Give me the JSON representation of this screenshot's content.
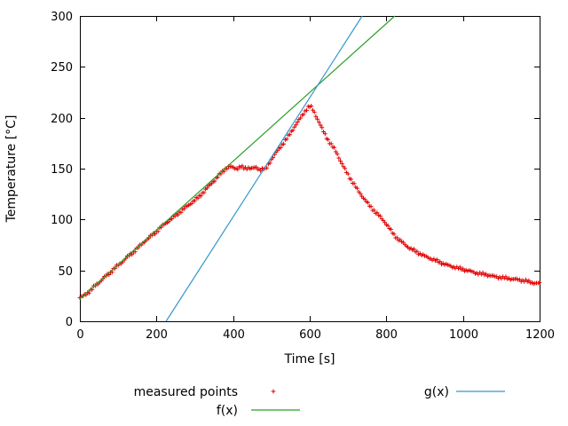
{
  "chart_data": {
    "type": "scatter",
    "title": "",
    "xlabel": "Time [s]",
    "ylabel": "Temperature [°C]",
    "xlim": [
      0,
      1200
    ],
    "ylim": [
      0,
      300
    ],
    "xticks": [
      0,
      200,
      400,
      600,
      800,
      1000,
      1200
    ],
    "yticks": [
      0,
      50,
      100,
      150,
      200,
      250,
      300
    ],
    "grid": false,
    "legend_position": "below-plot",
    "marker_interval_s": 4,
    "series": [
      {
        "name": "measured points",
        "style": "points",
        "marker": "plus",
        "color": "#e00000",
        "points": [
          [
            0,
            23
          ],
          [
            10,
            25
          ],
          [
            20,
            28
          ],
          [
            30,
            31
          ],
          [
            40,
            35
          ],
          [
            50,
            38
          ],
          [
            60,
            42
          ],
          [
            70,
            45
          ],
          [
            80,
            48
          ],
          [
            90,
            52
          ],
          [
            100,
            55
          ],
          [
            110,
            58
          ],
          [
            120,
            62
          ],
          [
            130,
            65
          ],
          [
            140,
            68
          ],
          [
            150,
            72
          ],
          [
            160,
            75
          ],
          [
            170,
            79
          ],
          [
            180,
            82
          ],
          [
            190,
            85
          ],
          [
            200,
            88
          ],
          [
            210,
            92
          ],
          [
            220,
            95
          ],
          [
            230,
            98
          ],
          [
            240,
            101
          ],
          [
            250,
            104
          ],
          [
            260,
            107
          ],
          [
            270,
            110
          ],
          [
            280,
            113
          ],
          [
            290,
            116
          ],
          [
            300,
            119
          ],
          [
            310,
            122
          ],
          [
            320,
            126
          ],
          [
            330,
            130
          ],
          [
            340,
            134
          ],
          [
            350,
            138
          ],
          [
            360,
            142
          ],
          [
            370,
            146
          ],
          [
            380,
            150
          ],
          [
            390,
            152
          ],
          [
            400,
            151
          ],
          [
            410,
            150
          ],
          [
            420,
            152
          ],
          [
            430,
            150
          ],
          [
            440,
            151
          ],
          [
            450,
            150
          ],
          [
            460,
            151
          ],
          [
            470,
            149
          ],
          [
            480,
            150
          ],
          [
            485,
            149
          ],
          [
            495,
            156
          ],
          [
            505,
            162
          ],
          [
            515,
            167
          ],
          [
            525,
            172
          ],
          [
            535,
            177
          ],
          [
            545,
            182
          ],
          [
            555,
            188
          ],
          [
            565,
            194
          ],
          [
            575,
            199
          ],
          [
            585,
            205
          ],
          [
            595,
            210
          ],
          [
            600,
            211
          ],
          [
            605,
            210
          ],
          [
            615,
            203
          ],
          [
            625,
            195
          ],
          [
            635,
            187
          ],
          [
            645,
            180
          ],
          [
            655,
            174
          ],
          [
            665,
            169
          ],
          [
            675,
            162
          ],
          [
            685,
            154
          ],
          [
            695,
            147
          ],
          [
            705,
            141
          ],
          [
            715,
            135
          ],
          [
            725,
            129
          ],
          [
            735,
            124
          ],
          [
            745,
            119
          ],
          [
            755,
            114
          ],
          [
            765,
            110
          ],
          [
            775,
            106
          ],
          [
            785,
            102
          ],
          [
            795,
            98
          ],
          [
            805,
            93
          ],
          [
            812,
            89
          ],
          [
            820,
            85
          ],
          [
            830,
            81
          ],
          [
            840,
            78
          ],
          [
            850,
            75
          ],
          [
            860,
            72
          ],
          [
            870,
            70
          ],
          [
            880,
            68
          ],
          [
            890,
            66
          ],
          [
            900,
            64
          ],
          [
            920,
            61
          ],
          [
            940,
            58
          ],
          [
            960,
            55
          ],
          [
            980,
            53
          ],
          [
            1000,
            51
          ],
          [
            1020,
            49
          ],
          [
            1040,
            47
          ],
          [
            1060,
            46
          ],
          [
            1080,
            44
          ],
          [
            1100,
            43
          ],
          [
            1120,
            42
          ],
          [
            1140,
            41
          ],
          [
            1160,
            40
          ],
          [
            1180,
            38
          ],
          [
            1200,
            37
          ]
        ]
      },
      {
        "name": "f(x)",
        "style": "line",
        "color": "#28a028",
        "points": [
          [
            0,
            22
          ],
          [
            822,
            300
          ]
        ]
      },
      {
        "name": "g(x)",
        "style": "line",
        "color": "#3399cc",
        "points": [
          [
            225,
            0
          ],
          [
            737,
            300
          ]
        ]
      }
    ]
  }
}
